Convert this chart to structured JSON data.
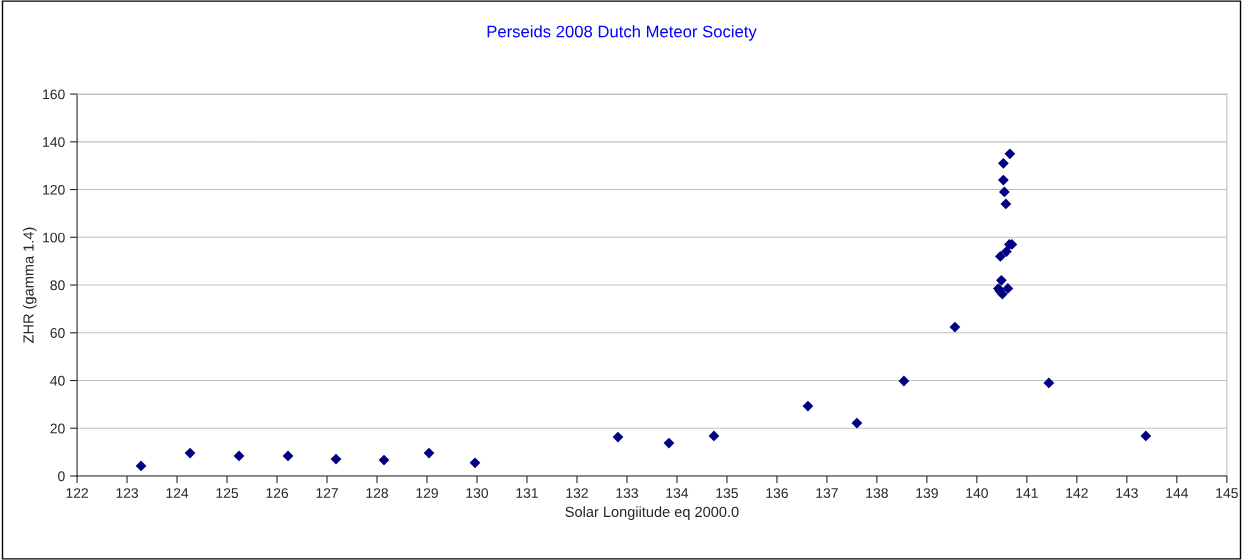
{
  "chart_data": {
    "type": "scatter",
    "title": "Perseids 2008 Dutch Meteor Society",
    "xlabel": "Solar Longiitude eq 2000.0",
    "ylabel": "ZHR (gamma 1.4)",
    "series": [
      {
        "color": "#000080",
        "marker": "diamond",
        "x": [
          123.28,
          124.26,
          125.24,
          126.22,
          127.18,
          128.14,
          129.04,
          129.96,
          132.82,
          133.84,
          134.74,
          136.62,
          137.6,
          138.54,
          139.56,
          140.66,
          140.53,
          140.53,
          140.55,
          140.58,
          140.65,
          140.7,
          140.59,
          140.47,
          140.49,
          140.43,
          140.46,
          140.62,
          140.51,
          141.44,
          143.38
        ],
        "values": [
          4.2,
          9.6,
          8.4,
          8.4,
          7.1,
          6.7,
          9.6,
          5.5,
          16.3,
          13.8,
          16.8,
          29.3,
          22.2,
          39.8,
          62.4,
          135,
          131,
          124,
          119,
          114,
          97,
          97,
          94,
          92,
          82,
          78.5,
          77.5,
          78.6,
          76.2,
          39,
          16.8
        ]
      }
    ],
    "xlim": [
      122,
      145
    ],
    "xticks": [
      122,
      123,
      124,
      125,
      126,
      127,
      128,
      129,
      130,
      131,
      132,
      133,
      134,
      135,
      136,
      137,
      138,
      139,
      140,
      141,
      142,
      143,
      144,
      145
    ],
    "ylim": [
      0,
      160
    ],
    "yticks": [
      0,
      20,
      40,
      60,
      80,
      100,
      120,
      140,
      160
    ],
    "grid": "y",
    "legend": false
  }
}
